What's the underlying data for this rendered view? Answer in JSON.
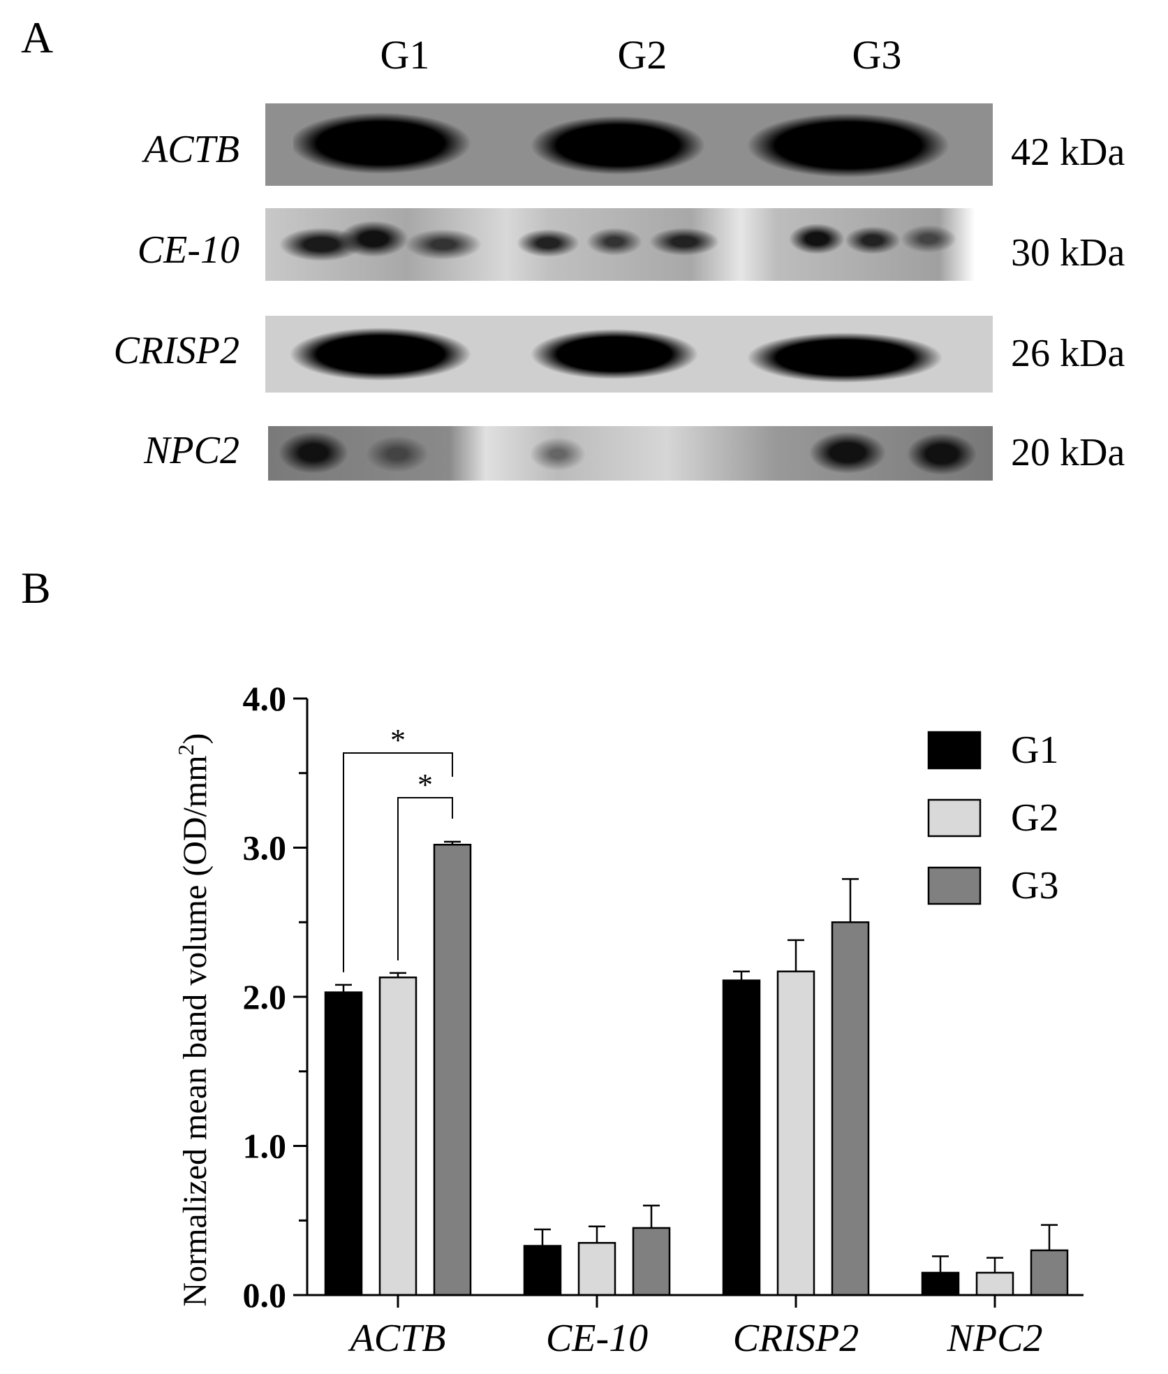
{
  "panels": {
    "a": "A",
    "b": "B"
  },
  "blot": {
    "lanes": [
      "G1",
      "G2",
      "G3"
    ],
    "rows": [
      {
        "protein": "ACTB",
        "size": "42 kDa"
      },
      {
        "protein": "CE-10",
        "size": "30 kDa"
      },
      {
        "protein": "CRISP2",
        "size": "26 kDa"
      },
      {
        "protein": "NPC2",
        "size": "20 kDa"
      }
    ]
  },
  "chart_data": {
    "type": "bar",
    "categories": [
      "ACTB",
      "CE-10",
      "CRISP2",
      "NPC2"
    ],
    "series": [
      {
        "name": "G1",
        "values": [
          2.03,
          0.33,
          2.11,
          0.15
        ],
        "errors": [
          0.05,
          0.11,
          0.06,
          0.11
        ],
        "color": "#000000"
      },
      {
        "name": "G2",
        "values": [
          2.13,
          0.35,
          2.17,
          0.15
        ],
        "errors": [
          0.03,
          0.11,
          0.21,
          0.1
        ],
        "color": "#d9d9d9"
      },
      {
        "name": "G3",
        "values": [
          3.02,
          0.45,
          2.5,
          0.3
        ],
        "errors": [
          0.02,
          0.15,
          0.29,
          0.17
        ],
        "color": "#808080"
      }
    ],
    "ylabel": "Normalized mean band volume (OD/mm",
    "ylabel_sup": "2",
    "ylabel_end": ")",
    "ylim": [
      0,
      4.0
    ],
    "yticks": [
      "0.0",
      "1.0",
      "2.0",
      "3.0",
      "4.0"
    ],
    "legend_position": "top-right",
    "significance": [
      {
        "category": "ACTB",
        "from": "G1",
        "to": "G3",
        "label": "*"
      },
      {
        "category": "ACTB",
        "from": "G2",
        "to": "G3",
        "label": "*"
      }
    ]
  }
}
